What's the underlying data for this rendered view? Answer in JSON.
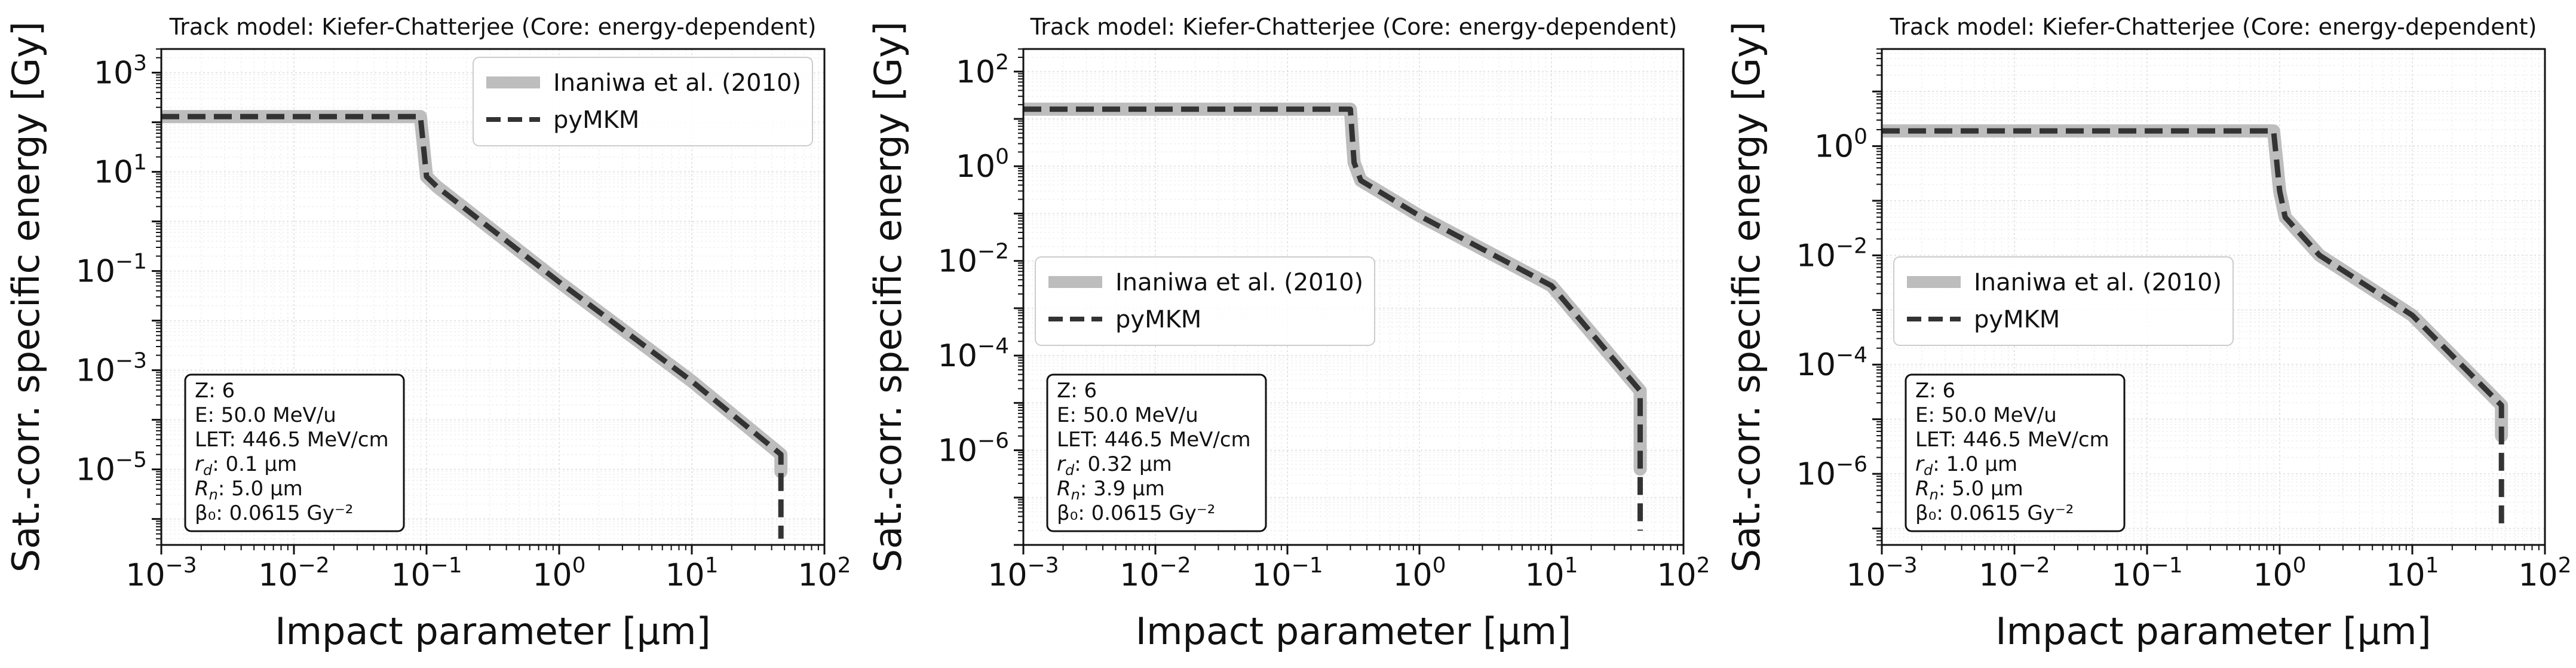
{
  "chart_data": [
    {
      "type": "line",
      "title": "Track model: Kiefer-Chatterjee (Core: energy-dependent)",
      "xlabel": "Impact parameter [μm]",
      "ylabel": "Sat.-corr. specific energy [Gy]",
      "xscale": "log",
      "yscale": "log",
      "xlim": [
        0.001,
        100
      ],
      "ylim": [
        3e-07,
        3000
      ],
      "xticks": [
        "10^-3",
        "10^-2",
        "10^-1",
        "10^0",
        "10^1",
        "10^2"
      ],
      "yticks": [
        "10^-5",
        "10^-3",
        "10^-1",
        "10^1",
        "10^3"
      ],
      "grid": true,
      "legend_position": "top-right",
      "series": [
        {
          "name": "Inaniwa et al. (2010)",
          "style": "solid",
          "color": "#bdbdbd",
          "x": [
            0.001,
            0.09,
            0.1,
            0.12,
            1,
            10,
            47,
            47
          ],
          "y": [
            130,
            130,
            8,
            5,
            0.06,
            0.0006,
            2e-05,
            9e-06
          ]
        },
        {
          "name": "pyMKM",
          "style": "dashed",
          "color": "#333333",
          "x": [
            0.001,
            0.09,
            0.1,
            0.12,
            1,
            10,
            47,
            47
          ],
          "y": [
            130,
            130,
            8,
            5,
            0.06,
            0.0006,
            2e-05,
            4e-07
          ]
        }
      ],
      "annotation": [
        "Z: 6",
        "E: 50.0 MeV/u",
        "LET: 446.5 MeV/cm",
        "r_d: 0.1 μm",
        "R_n: 5.0 μm",
        "β₀: 0.0615 Gy⁻²"
      ]
    },
    {
      "type": "line",
      "title": "Track model: Kiefer-Chatterjee (Core: energy-dependent)",
      "xlabel": "Impact parameter [μm]",
      "ylabel": "Sat.-corr. specific energy [Gy]",
      "xscale": "log",
      "yscale": "log",
      "xlim": [
        0.001,
        100
      ],
      "ylim": [
        1e-08,
        300
      ],
      "xticks": [
        "10^-3",
        "10^-2",
        "10^-1",
        "10^0",
        "10^1",
        "10^2"
      ],
      "yticks": [
        "10^-6",
        "10^-4",
        "10^-2",
        "10^0",
        "10^2"
      ],
      "grid": true,
      "legend_position": "center-left",
      "series": [
        {
          "name": "Inaniwa et al. (2010)",
          "style": "solid",
          "color": "#bdbdbd",
          "x": [
            0.001,
            0.3,
            0.32,
            0.36,
            1,
            10,
            47,
            47
          ],
          "y": [
            16,
            16,
            1.2,
            0.5,
            0.09,
            0.003,
            1.8e-05,
            4e-07
          ]
        },
        {
          "name": "pyMKM",
          "style": "dashed",
          "color": "#333333",
          "x": [
            0.001,
            0.3,
            0.32,
            0.36,
            1,
            10,
            47,
            47
          ],
          "y": [
            16,
            16,
            1.2,
            0.5,
            0.09,
            0.003,
            1.8e-05,
            2e-08
          ]
        }
      ],
      "annotation": [
        "Z: 6",
        "E: 50.0 MeV/u",
        "LET: 446.5 MeV/cm",
        "r_d: 0.32 μm",
        "R_n: 3.9 μm",
        "β₀: 0.0615 Gy⁻²"
      ]
    },
    {
      "type": "line",
      "title": "Track model: Kiefer-Chatterjee (Core: energy-dependent)",
      "xlabel": "Impact parameter [μm]",
      "ylabel": "Sat.-corr. specific energy [Gy]",
      "xscale": "log",
      "yscale": "log",
      "xlim": [
        0.001,
        100
      ],
      "ylim": [
        5e-08,
        60
      ],
      "xticks": [
        "10^-3",
        "10^-2",
        "10^-1",
        "10^0",
        "10^1",
        "10^2"
      ],
      "yticks": [
        "10^-6",
        "10^-4",
        "10^-2",
        "10^0"
      ],
      "grid": true,
      "legend_position": "center-left",
      "series": [
        {
          "name": "Inaniwa et al. (2010)",
          "style": "solid",
          "color": "#bdbdbd",
          "x": [
            0.001,
            0.9,
            1.0,
            1.1,
            2,
            10,
            47,
            47
          ],
          "y": [
            1.9,
            1.9,
            0.15,
            0.05,
            0.01,
            0.0008,
            1.8e-05,
            5e-06
          ]
        },
        {
          "name": "pyMKM",
          "style": "dashed",
          "color": "#333333",
          "x": [
            0.001,
            0.9,
            1.0,
            1.1,
            2,
            10,
            47,
            47
          ],
          "y": [
            1.9,
            1.9,
            0.15,
            0.05,
            0.01,
            0.0008,
            1.8e-05,
            1e-07
          ]
        }
      ],
      "annotation": [
        "Z: 6",
        "E: 50.0 MeV/u",
        "LET: 446.5 MeV/cm",
        "r_d: 1.0 μm",
        "R_n: 5.0 μm",
        "β₀: 0.0615 Gy⁻²"
      ]
    }
  ]
}
